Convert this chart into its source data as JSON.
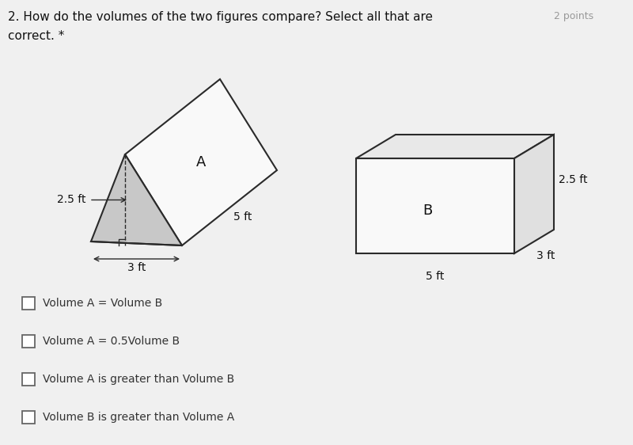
{
  "title_line1": "2. How do the volumes of the two figures compare? Select all that are",
  "title_line2": "correct. *",
  "points_text": "2 points",
  "bg_color": "#f0f0f0",
  "fig_A_label": "A",
  "fig_B_label": "B",
  "dim_25ft_A": "2.5 ft",
  "dim_5ft_A": "5 ft",
  "dim_3ft_A": "3 ft",
  "dim_5ft_B": "5 ft",
  "dim_25ft_B": "2.5 ft",
  "dim_3ft_B": "3 ft",
  "choices": [
    "Volume A = Volume B",
    "Volume A = 0.5Volume B",
    "Volume A is greater than Volume B",
    "Volume B is greater than Volume A"
  ],
  "line_color": "#2a2a2a",
  "tri_fill": "#c8c8c8",
  "face_fill_white": "#f9f9f9",
  "face_fill_top": "#e8e8e8",
  "face_fill_right": "#e0e0e0"
}
